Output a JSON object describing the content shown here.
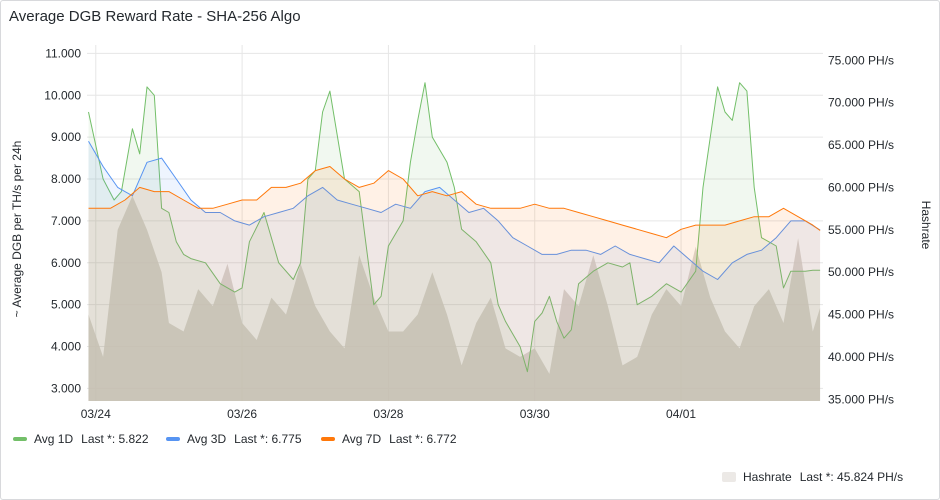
{
  "panel": {
    "title": "Average DGB Reward Rate - SHA-256 Algo"
  },
  "colors": {
    "avg1d": "#73bf69",
    "avg3d": "#5794f2",
    "avg7d": "#ff780a",
    "hashrate_fill": "#d6d1cb",
    "grid": "#e6e6e6"
  },
  "legend": [
    {
      "label": "Avg 1D",
      "last": "Last *: 5.822",
      "color": "#73bf69"
    },
    {
      "label": "Avg 3D",
      "last": "Last *: 6.775",
      "color": "#5794f2"
    },
    {
      "label": "Avg 7D",
      "last": "Last *: 6.772",
      "color": "#ff780a"
    },
    {
      "label": "Hashrate",
      "last": "Last *: 45.824 PH/s",
      "color": "#ece9e6"
    }
  ],
  "chart_data": {
    "type": "line",
    "title": "Average DGB Reward Rate - SHA-256 Algo",
    "ylabel": "~ Average DGB per TH/s per 24h",
    "y2label": "Hashrate",
    "ylim": [
      2.7,
      11.2
    ],
    "y2lim": [
      34.8,
      76.8
    ],
    "y_ticks": [
      "3.000",
      "4.000",
      "5.000",
      "6.000",
      "7.000",
      "8.000",
      "9.000",
      "10.000",
      "11.000"
    ],
    "y2_ticks": [
      "35.000 PH/s",
      "40.000 PH/s",
      "45.000 PH/s",
      "50.000 PH/s",
      "55.000 PH/s",
      "60.000 PH/s",
      "65.000 PH/s",
      "70.000 PH/s",
      "75.000 PH/s"
    ],
    "x_ticks": [
      "03/24",
      "03/26",
      "03/28",
      "03/30",
      "04/01"
    ],
    "x_tick_days": [
      0,
      2,
      4,
      6,
      8
    ],
    "xlim": [
      -0.12,
      9.94
    ],
    "legend_position": "bottom-left",
    "grid": true,
    "series": [
      {
        "name": "Avg 1D",
        "axis": "left",
        "x": [
          -0.1,
          0.1,
          0.25,
          0.35,
          0.5,
          0.6,
          0.7,
          0.8,
          0.9,
          1.0,
          1.1,
          1.2,
          1.3,
          1.5,
          1.7,
          1.9,
          2.0,
          2.1,
          2.3,
          2.5,
          2.7,
          2.8,
          2.9,
          3.0,
          3.1,
          3.2,
          3.4,
          3.6,
          3.8,
          3.9,
          4.0,
          4.2,
          4.3,
          4.4,
          4.5,
          4.6,
          4.8,
          4.9,
          5.0,
          5.2,
          5.4,
          5.5,
          5.6,
          5.8,
          5.9,
          6.0,
          6.1,
          6.2,
          6.3,
          6.4,
          6.5,
          6.6,
          6.8,
          7.0,
          7.2,
          7.3,
          7.4,
          7.6,
          7.8,
          8.0,
          8.2,
          8.3,
          8.4,
          8.5,
          8.6,
          8.7,
          8.8,
          8.9,
          9.0,
          9.1,
          9.2,
          9.3,
          9.4,
          9.5,
          9.6,
          9.7,
          9.8,
          9.9
        ],
        "values": [
          9.6,
          8.0,
          7.5,
          7.7,
          9.2,
          8.6,
          10.2,
          10.0,
          7.3,
          7.2,
          6.5,
          6.2,
          6.1,
          6.0,
          5.5,
          5.3,
          5.4,
          6.5,
          7.2,
          6.0,
          5.6,
          6.0,
          8.0,
          8.2,
          9.6,
          10.1,
          8.0,
          7.7,
          5.0,
          5.2,
          6.4,
          7.0,
          8.4,
          9.4,
          10.3,
          9.0,
          8.4,
          7.8,
          6.8,
          6.5,
          6.0,
          5.0,
          4.6,
          4.0,
          3.4,
          4.6,
          4.8,
          5.2,
          4.6,
          4.2,
          4.4,
          5.5,
          5.8,
          6.0,
          5.9,
          6.0,
          5.0,
          5.2,
          5.5,
          5.3,
          5.8,
          7.8,
          9.0,
          10.2,
          9.6,
          9.4,
          10.3,
          10.1,
          7.8,
          6.6,
          6.5,
          6.4,
          5.4,
          5.8,
          5.8,
          5.8,
          5.82,
          5.82
        ]
      },
      {
        "name": "Avg 3D",
        "axis": "left",
        "x": [
          -0.1,
          0.1,
          0.3,
          0.5,
          0.7,
          0.9,
          1.1,
          1.3,
          1.5,
          1.7,
          1.9,
          2.1,
          2.3,
          2.5,
          2.7,
          2.9,
          3.1,
          3.3,
          3.5,
          3.7,
          3.9,
          4.1,
          4.3,
          4.5,
          4.7,
          4.9,
          5.1,
          5.3,
          5.5,
          5.7,
          5.9,
          6.1,
          6.3,
          6.5,
          6.7,
          6.9,
          7.1,
          7.3,
          7.5,
          7.7,
          7.9,
          8.1,
          8.3,
          8.5,
          8.7,
          8.9,
          9.1,
          9.3,
          9.5,
          9.7,
          9.9
        ],
        "values": [
          8.9,
          8.3,
          7.8,
          7.6,
          8.4,
          8.5,
          8.0,
          7.5,
          7.2,
          7.2,
          7.0,
          6.9,
          7.1,
          7.2,
          7.3,
          7.6,
          7.8,
          7.5,
          7.4,
          7.3,
          7.2,
          7.4,
          7.3,
          7.7,
          7.8,
          7.5,
          7.2,
          7.3,
          7.0,
          6.6,
          6.4,
          6.2,
          6.2,
          6.3,
          6.3,
          6.2,
          6.4,
          6.2,
          6.1,
          6.0,
          6.4,
          6.1,
          5.8,
          5.6,
          6.0,
          6.2,
          6.3,
          6.6,
          7.0,
          7.0,
          6.78
        ]
      },
      {
        "name": "Avg 7D",
        "axis": "left",
        "x": [
          -0.1,
          0.2,
          0.4,
          0.6,
          0.8,
          1.0,
          1.2,
          1.4,
          1.6,
          1.8,
          2.0,
          2.2,
          2.4,
          2.6,
          2.8,
          3.0,
          3.2,
          3.4,
          3.6,
          3.8,
          4.0,
          4.2,
          4.4,
          4.6,
          4.8,
          5.0,
          5.2,
          5.4,
          5.6,
          5.8,
          6.0,
          6.2,
          6.4,
          6.6,
          6.8,
          7.0,
          7.2,
          7.4,
          7.6,
          7.8,
          8.0,
          8.2,
          8.4,
          8.6,
          8.8,
          9.0,
          9.2,
          9.4,
          9.6,
          9.8,
          9.9
        ],
        "values": [
          7.3,
          7.3,
          7.5,
          7.8,
          7.7,
          7.7,
          7.5,
          7.3,
          7.3,
          7.4,
          7.5,
          7.5,
          7.8,
          7.8,
          7.9,
          8.2,
          8.3,
          8.0,
          7.8,
          7.9,
          8.2,
          8.0,
          7.6,
          7.7,
          7.6,
          7.7,
          7.4,
          7.3,
          7.3,
          7.3,
          7.4,
          7.3,
          7.3,
          7.2,
          7.1,
          7.0,
          6.9,
          6.8,
          6.7,
          6.6,
          6.8,
          6.9,
          6.9,
          6.9,
          7.0,
          7.1,
          7.1,
          7.3,
          7.1,
          6.9,
          6.77
        ]
      },
      {
        "name": "Hashrate",
        "axis": "right",
        "x": [
          -0.1,
          0.1,
          0.3,
          0.5,
          0.7,
          0.9,
          1.0,
          1.2,
          1.4,
          1.6,
          1.8,
          2.0,
          2.2,
          2.4,
          2.6,
          2.8,
          3.0,
          3.2,
          3.4,
          3.6,
          3.8,
          4.0,
          4.2,
          4.4,
          4.6,
          4.8,
          5.0,
          5.2,
          5.4,
          5.6,
          5.8,
          6.0,
          6.2,
          6.4,
          6.6,
          6.8,
          7.0,
          7.2,
          7.4,
          7.6,
          7.8,
          8.0,
          8.2,
          8.4,
          8.6,
          8.8,
          9.0,
          9.2,
          9.4,
          9.6,
          9.8,
          9.9
        ],
        "values": [
          45,
          40,
          55,
          59,
          55,
          50,
          44,
          43,
          48,
          46,
          51,
          44,
          42,
          47,
          45,
          51,
          46,
          43,
          41,
          52,
          47,
          43,
          43,
          45,
          50,
          45,
          39,
          44,
          47,
          41,
          40,
          41,
          38,
          48,
          46,
          52,
          46,
          39,
          40,
          45,
          48,
          46,
          53,
          47,
          43,
          41,
          46,
          48,
          44,
          54,
          43,
          45.8
        ]
      }
    ]
  }
}
